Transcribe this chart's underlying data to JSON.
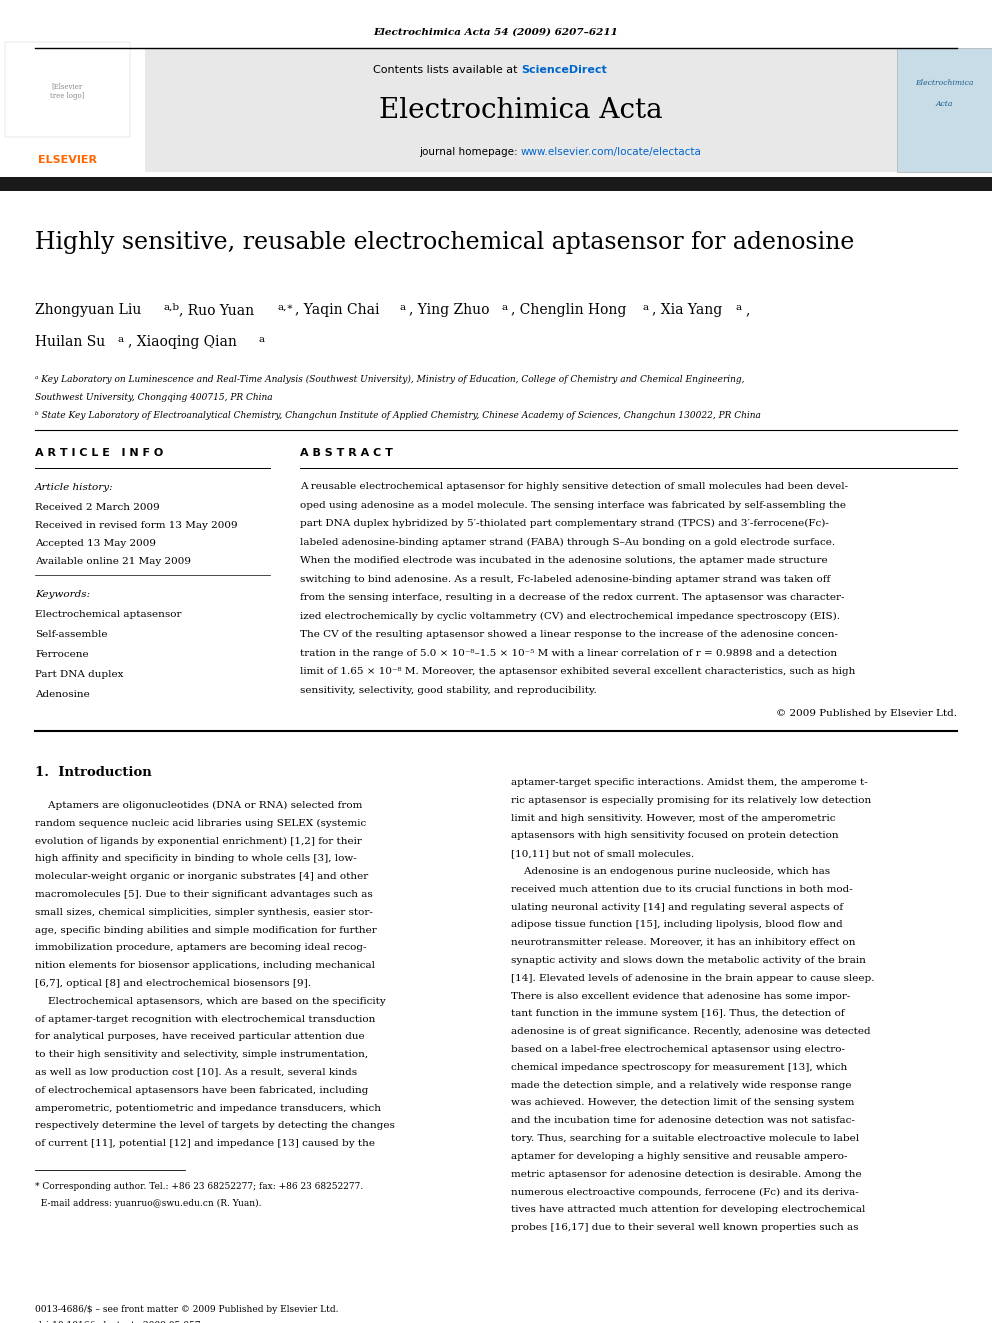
{
  "page_width": 9.92,
  "page_height": 13.23,
  "dpi": 100,
  "bg_color": "#ffffff",
  "header_journal_ref": "Electrochimica Acta 54 (2009) 6207–6211",
  "journal_name": "Electrochimica Acta",
  "sciencedirect_color": "#0066cc",
  "homepage_url_color": "#0066cc",
  "paper_title": "Highly sensitive, reusable electrochemical aptasensor for adenosine",
  "article_info_header": "A R T I C L E   I N F O",
  "abstract_header": "A B S T R A C T",
  "article_history_label": "Article history:",
  "received": "Received 2 March 2009",
  "received_revised": "Received in revised form 13 May 2009",
  "accepted": "Accepted 13 May 2009",
  "available": "Available online 21 May 2009",
  "keywords_label": "Keywords:",
  "keywords": [
    "Electrochemical aptasensor",
    "Self-assemble",
    "Ferrocene",
    "Part DNA duplex",
    "Adenosine"
  ],
  "copyright_text": "© 2009 Published by Elsevier Ltd.",
  "section1_header": "1.  Introduction",
  "elsevier_color": "#ff6600",
  "thick_bar_color": "#1a1a1a"
}
